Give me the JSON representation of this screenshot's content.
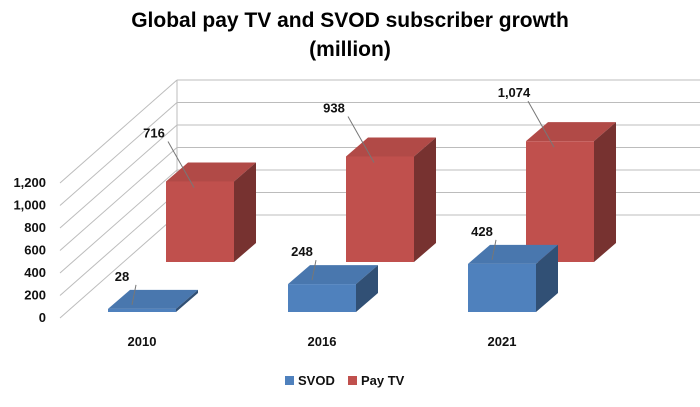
{
  "chart_data": {
    "type": "bar",
    "title_line1": "Global pay TV and SVOD subscriber growth",
    "title_line2": "(million)",
    "categories": [
      "2010",
      "2016",
      "2021"
    ],
    "series": [
      {
        "name": "SVOD",
        "values": [
          28,
          248,
          428
        ],
        "labels": [
          "28",
          "248",
          "428"
        ]
      },
      {
        "name": "Pay TV",
        "values": [
          716,
          938,
          1074
        ],
        "labels": [
          "716",
          "938",
          "1,074"
        ]
      }
    ],
    "y_ticks": [
      "0",
      "200",
      "400",
      "600",
      "800",
      "1,000",
      "1,200"
    ],
    "ylim": [
      0,
      1200
    ],
    "legend_position": "bottom",
    "three_d": true,
    "grid": true,
    "colors": {
      "SVOD": "#4F81BD",
      "Pay TV": "#C0504D"
    }
  }
}
